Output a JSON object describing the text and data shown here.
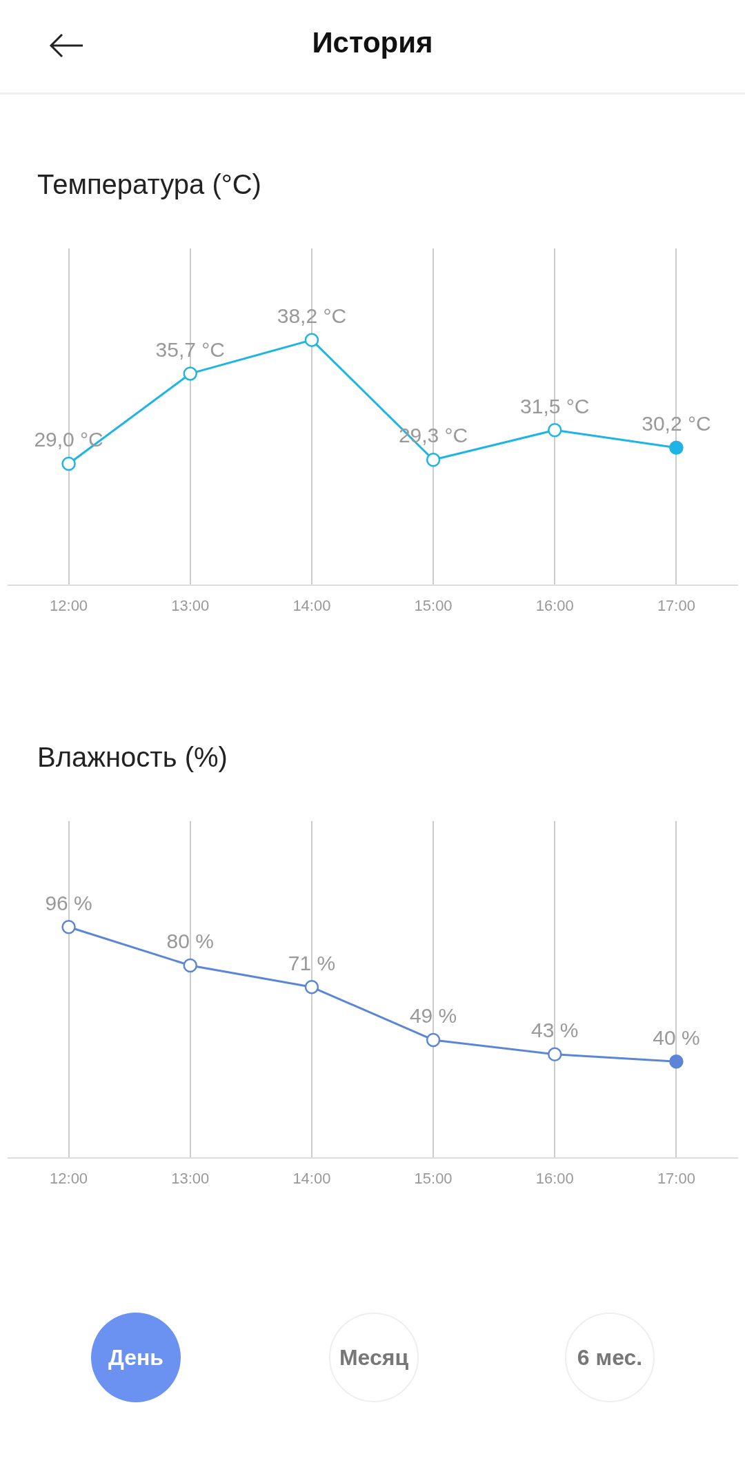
{
  "chart_data": [
    {
      "type": "line",
      "title": "Температура (°C)",
      "annotations": [
        "История"
      ],
      "categories": [
        "12:00",
        "13:00",
        "14:00",
        "15:00",
        "16:00",
        "17:00"
      ],
      "series": [
        {
          "color": "#1eb4e6",
          "values": [
            29.0,
            35.7,
            38.2,
            29.3,
            31.5,
            30.2
          ],
          "value_labels": [
            "29,0 °C",
            "35,7 °C",
            "38,2 °C",
            "29,3 °C",
            "31,5 °C",
            "30,2 °C"
          ]
        }
      ],
      "grid": "x",
      "legend": false,
      "tick_labels": "x",
      "marker": "circle",
      "line_style": "solid"
    },
    {
      "type": "line",
      "title": "Влажность (%)",
      "annotations": [
        "День",
        "Месяц",
        "6 мес."
      ],
      "categories": [
        "12:00",
        "13:00",
        "14:00",
        "15:00",
        "16:00",
        "17:00"
      ],
      "series": [
        {
          "color": "#5b86d8",
          "values": [
            96,
            80,
            71,
            49,
            43,
            40
          ],
          "value_labels": [
            "96 %",
            "80 %",
            "71 %",
            "49 %",
            "43 %",
            "40 %"
          ]
        }
      ],
      "grid": "x",
      "legend": false,
      "tick_labels": "x",
      "marker": "circle",
      "line_style": "solid"
    }
  ]
}
